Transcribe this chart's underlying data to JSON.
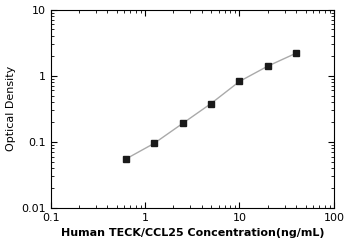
{
  "x": [
    0.625,
    1.25,
    2.5,
    5,
    10,
    20,
    40
  ],
  "y": [
    0.055,
    0.095,
    0.19,
    0.38,
    0.82,
    1.4,
    2.2
  ],
  "xlabel": "Human TECK/CCL25 Concentration(ng/mL)",
  "ylabel": "Optical Density",
  "xlim": [
    0.1,
    100
  ],
  "ylim": [
    0.01,
    10
  ],
  "xticks": [
    0.1,
    1,
    10,
    100
  ],
  "xtick_labels": [
    "0.1",
    "1",
    "10",
    "100"
  ],
  "yticks": [
    0.01,
    0.1,
    1,
    10
  ],
  "ytick_labels": [
    "0.01",
    "0.1",
    "1",
    "10"
  ],
  "line_color": "#aaaaaa",
  "marker_color": "#1a1a1a",
  "marker": "s",
  "marker_size": 4,
  "line_width": 1.0,
  "background_color": "#ffffff",
  "xlabel_fontsize": 8,
  "ylabel_fontsize": 8,
  "tick_fontsize": 8,
  "xlabel_bold": true
}
